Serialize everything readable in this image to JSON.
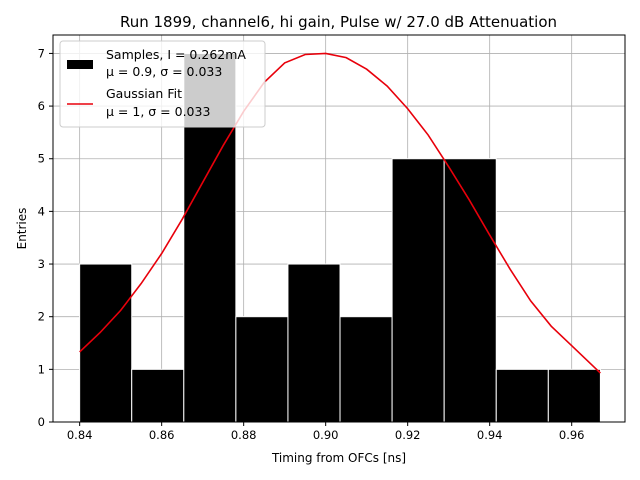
{
  "chart_data": {
    "type": "bar",
    "title": "Run 1899, channel6, hi gain, Pulse w/ 27.0 dB Attenuation",
    "xlabel": "Timing from OFCs [ns]",
    "ylabel": "Entries",
    "xlim": [
      0.8335,
      0.973
    ],
    "ylim": [
      0,
      7.35
    ],
    "xticks": [
      0.84,
      0.86,
      0.88,
      0.9,
      0.92,
      0.94,
      0.96
    ],
    "xtick_labels": [
      "0.84",
      "0.86",
      "0.88",
      "0.90",
      "0.92",
      "0.94",
      "0.96"
    ],
    "yticks": [
      0,
      1,
      2,
      3,
      4,
      5,
      6,
      7
    ],
    "ytick_labels": [
      "0",
      "1",
      "2",
      "3",
      "4",
      "5",
      "6",
      "7"
    ],
    "grid": true,
    "legend_position": "top-left",
    "histogram": {
      "name": "Samples, I = 0.262mA",
      "stats": "μ = 0.9, σ = 0.033",
      "color": "#000000",
      "bin_edges": [
        0.84,
        0.8527,
        0.8654,
        0.8781,
        0.8908,
        0.9035,
        0.9162,
        0.9289,
        0.9416,
        0.9543,
        0.967
      ],
      "counts": [
        3,
        1,
        7,
        2,
        3,
        2,
        5,
        5,
        1,
        1
      ]
    },
    "fit": {
      "name": "Gaussian Fit",
      "stats": "μ = 1, σ = 0.033",
      "color": "#e8000b",
      "x": [
        0.84,
        0.845,
        0.85,
        0.855,
        0.86,
        0.865,
        0.87,
        0.875,
        0.88,
        0.885,
        0.89,
        0.895,
        0.9,
        0.905,
        0.91,
        0.915,
        0.92,
        0.925,
        0.93,
        0.935,
        0.94,
        0.945,
        0.95,
        0.955,
        0.96,
        0.967
      ],
      "y": [
        1.33,
        1.7,
        2.12,
        2.63,
        3.2,
        3.85,
        4.55,
        5.25,
        5.9,
        6.45,
        6.82,
        6.98,
        7.0,
        6.92,
        6.7,
        6.38,
        5.95,
        5.45,
        4.85,
        4.22,
        3.55,
        2.9,
        2.3,
        1.82,
        1.45,
        0.93
      ]
    }
  }
}
